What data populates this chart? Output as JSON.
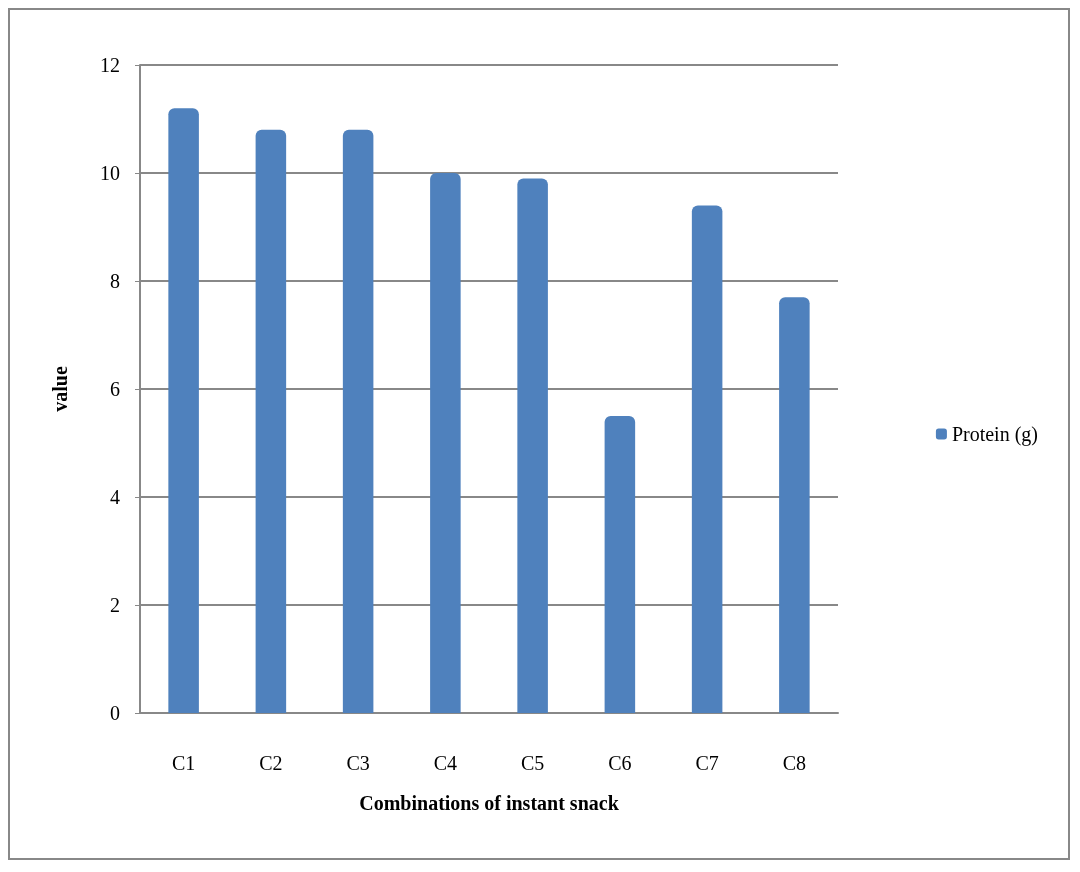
{
  "chart_data": {
    "type": "bar",
    "xlabel": "Combinations of instant snack",
    "ylabel": "value",
    "categories": [
      "C1",
      "C2",
      "C3",
      "C4",
      "C5",
      "C6",
      "C7",
      "C8"
    ],
    "series": [
      {
        "name": "Protein (g)",
        "color": "#4f81bd",
        "values": [
          11.2,
          10.8,
          10.8,
          10.0,
          9.9,
          5.5,
          9.4,
          7.7
        ]
      }
    ],
    "ylim": [
      0,
      12
    ],
    "yticks": [
      0,
      2,
      4,
      6,
      8,
      10,
      12
    ],
    "grid": "y",
    "legend": "right"
  }
}
